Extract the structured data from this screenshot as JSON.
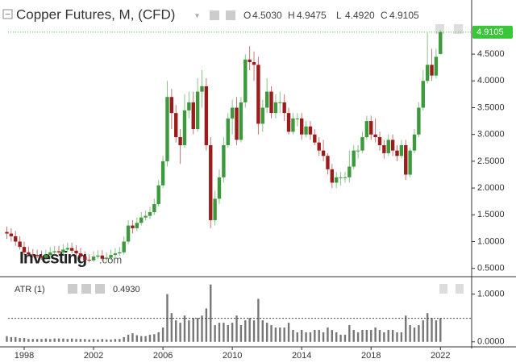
{
  "header": {
    "title": "Copper Futures, M, (CFD)",
    "ohlc": [
      {
        "key": "O",
        "text": "4.5030"
      },
      {
        "key": "H",
        "text": "4.9475"
      },
      {
        "key": "L",
        "text": "4.4920"
      },
      {
        "key": "C",
        "text": "4.9105"
      }
    ]
  },
  "chart_data": [
    {
      "type": "candlestick",
      "watermark": "Investing",
      "watermark_suffix": ".com",
      "up_color": "#3c9a3c",
      "down_color": "#9b1c1c",
      "last_price": {
        "value": 4.9105,
        "label": "4.9105"
      },
      "last_color": "#39c639",
      "xlim": [
        1997.07,
        2023.8
      ],
      "ylim": [
        0.39,
        5.36
      ],
      "yticks": [
        {
          "value": 0.5,
          "label": "0.5000"
        },
        {
          "value": 1,
          "label": "1.0000"
        },
        {
          "value": 1.5,
          "label": "1.5000"
        },
        {
          "value": 2,
          "label": "2.0000"
        },
        {
          "value": 2.5,
          "label": "2.5000"
        },
        {
          "value": 3,
          "label": "3.0000"
        },
        {
          "value": 3.5,
          "label": "3.5000"
        },
        {
          "value": 4,
          "label": "4.0000"
        },
        {
          "value": 4.5,
          "label": "4.5000"
        }
      ],
      "x": [
        1997,
        1997.25,
        1997.5,
        1997.75,
        1998,
        1998.25,
        1998.5,
        1998.75,
        1999,
        1999.25,
        1999.5,
        1999.75,
        2000,
        2000.25,
        2000.5,
        2000.75,
        2001,
        2001.25,
        2001.5,
        2001.75,
        2002,
        2002.25,
        2002.5,
        2002.75,
        2003,
        2003.25,
        2003.5,
        2003.75,
        2004,
        2004.25,
        2004.5,
        2004.75,
        2005,
        2005.25,
        2005.5,
        2005.75,
        2006,
        2006.25,
        2006.5,
        2006.75,
        2007,
        2007.25,
        2007.5,
        2007.75,
        2008,
        2008.25,
        2008.5,
        2008.75,
        2009,
        2009.25,
        2009.5,
        2009.75,
        2010,
        2010.25,
        2010.5,
        2010.75,
        2011,
        2011.25,
        2011.5,
        2011.75,
        2012,
        2012.25,
        2012.5,
        2012.75,
        2013,
        2013.25,
        2013.5,
        2013.75,
        2014,
        2014.25,
        2014.5,
        2014.75,
        2015,
        2015.25,
        2015.5,
        2015.75,
        2016,
        2016.25,
        2016.5,
        2016.75,
        2017,
        2017.25,
        2017.5,
        2017.75,
        2018,
        2018.25,
        2018.5,
        2018.75,
        2019,
        2019.25,
        2019.5,
        2019.75,
        2020,
        2020.25,
        2020.5,
        2020.75,
        2021,
        2021.25,
        2021.5,
        2021.75,
        2022
      ],
      "open": [
        1.18,
        1.15,
        1.1,
        1.0,
        0.9,
        0.8,
        0.76,
        0.75,
        0.73,
        0.7,
        0.75,
        0.8,
        0.82,
        0.8,
        0.85,
        0.88,
        0.83,
        0.78,
        0.72,
        0.66,
        0.65,
        0.72,
        0.74,
        0.68,
        0.7,
        0.75,
        0.78,
        0.8,
        1.0,
        1.3,
        1.25,
        1.35,
        1.45,
        1.48,
        1.55,
        1.7,
        2.05,
        2.5,
        3.7,
        3.4,
        2.95,
        2.8,
        3.45,
        3.6,
        3.1,
        3.8,
        3.9,
        2.8,
        1.4,
        1.8,
        2.2,
        2.8,
        3.3,
        3.5,
        2.9,
        3.6,
        4.4,
        4.35,
        4.3,
        3.2,
        3.5,
        3.8,
        3.4,
        3.6,
        3.6,
        3.4,
        3.05,
        3.3,
        3.3,
        3.0,
        3.15,
        3.0,
        2.85,
        2.7,
        2.6,
        2.35,
        2.1,
        2.2,
        2.2,
        2.2,
        2.4,
        2.7,
        2.7,
        2.95,
        3.25,
        3.0,
        2.95,
        2.8,
        2.65,
        2.9,
        2.7,
        2.6,
        2.8,
        2.25,
        2.7,
        3.0,
        3.5,
        4.0,
        4.3,
        4.1,
        4.503
      ],
      "high": [
        1.28,
        1.25,
        1.2,
        1.1,
        1.0,
        0.9,
        0.86,
        0.85,
        0.83,
        0.85,
        0.9,
        0.92,
        0.92,
        0.95,
        0.98,
        0.98,
        0.93,
        0.88,
        0.82,
        0.76,
        0.82,
        0.84,
        0.84,
        0.8,
        0.85,
        0.88,
        0.9,
        1.1,
        1.4,
        1.4,
        1.45,
        1.55,
        1.58,
        1.65,
        1.8,
        2.15,
        2.6,
        4.0,
        3.85,
        3.55,
        3.1,
        3.75,
        3.8,
        3.8,
        4.05,
        4.2,
        4.05,
        2.95,
        1.95,
        2.35,
        2.95,
        3.4,
        3.65,
        3.7,
        3.7,
        4.5,
        4.65,
        4.55,
        4.45,
        3.65,
        4.05,
        3.9,
        3.75,
        3.8,
        3.75,
        3.5,
        3.4,
        3.4,
        3.4,
        3.25,
        3.25,
        3.1,
        2.95,
        2.9,
        2.65,
        2.45,
        2.3,
        2.3,
        2.3,
        2.7,
        2.8,
        2.8,
        3.05,
        3.35,
        3.35,
        3.3,
        3.05,
        2.9,
        3.0,
        3.0,
        2.8,
        2.9,
        2.9,
        2.75,
        3.1,
        3.6,
        4.2,
        4.9,
        4.6,
        4.6,
        4.9475
      ],
      "low": [
        1.05,
        1.0,
        0.92,
        0.85,
        0.75,
        0.72,
        0.7,
        0.69,
        0.66,
        0.66,
        0.72,
        0.75,
        0.75,
        0.76,
        0.8,
        0.78,
        0.73,
        0.68,
        0.62,
        0.61,
        0.62,
        0.68,
        0.64,
        0.64,
        0.66,
        0.7,
        0.74,
        0.76,
        0.95,
        1.15,
        1.2,
        1.3,
        1.4,
        1.42,
        1.5,
        1.65,
        2.0,
        2.4,
        3.1,
        2.85,
        2.45,
        2.75,
        3.3,
        3.0,
        3.05,
        3.5,
        2.7,
        1.25,
        1.3,
        1.7,
        2.1,
        2.75,
        3.0,
        2.8,
        2.85,
        3.5,
        4.2,
        4.0,
        3.0,
        3.05,
        3.4,
        3.3,
        3.3,
        3.4,
        3.25,
        3.0,
        3.0,
        3.15,
        2.9,
        2.95,
        2.9,
        2.8,
        2.6,
        2.5,
        2.25,
        2.0,
        2.0,
        2.05,
        2.1,
        2.1,
        2.35,
        2.55,
        2.65,
        2.9,
        2.9,
        2.85,
        2.7,
        2.55,
        2.6,
        2.6,
        2.5,
        2.55,
        2.15,
        2.2,
        2.65,
        2.95,
        3.45,
        3.95,
        4.0,
        4.05,
        4.492
      ],
      "close": [
        1.15,
        1.1,
        1.0,
        0.9,
        0.8,
        0.76,
        0.75,
        0.73,
        0.7,
        0.75,
        0.8,
        0.82,
        0.8,
        0.85,
        0.88,
        0.83,
        0.78,
        0.72,
        0.66,
        0.65,
        0.72,
        0.74,
        0.68,
        0.7,
        0.75,
        0.78,
        0.8,
        1.0,
        1.3,
        1.25,
        1.35,
        1.45,
        1.48,
        1.55,
        1.7,
        2.05,
        2.5,
        3.7,
        3.4,
        2.95,
        2.8,
        3.45,
        3.6,
        3.1,
        3.8,
        3.9,
        2.8,
        1.4,
        1.8,
        2.2,
        2.8,
        3.3,
        3.5,
        2.9,
        3.6,
        4.4,
        4.35,
        4.3,
        3.2,
        3.5,
        3.8,
        3.4,
        3.6,
        3.6,
        3.4,
        3.05,
        3.3,
        3.3,
        3.0,
        3.15,
        3.0,
        2.85,
        2.7,
        2.6,
        2.35,
        2.1,
        2.2,
        2.2,
        2.2,
        2.4,
        2.7,
        2.7,
        2.95,
        3.25,
        3.0,
        2.95,
        2.8,
        2.65,
        2.9,
        2.7,
        2.6,
        2.8,
        2.25,
        2.7,
        3.0,
        3.5,
        4.0,
        4.3,
        4.1,
        4.45,
        4.9105
      ]
    },
    {
      "type": "bar",
      "name": "ATR (1)",
      "value_label": "0.4930",
      "color": "#777",
      "xlim": [
        1997.07,
        2023.8
      ],
      "xticks": [
        1998,
        2002,
        2006,
        2010,
        2014,
        2018,
        2022
      ],
      "ylim": [
        -0.105,
        1.33
      ],
      "yticks": [
        {
          "value": 0,
          "label": "0.0000"
        },
        {
          "value": 1,
          "label": "1.0000"
        }
      ],
      "values": [
        0.12,
        0.1,
        0.1,
        0.08,
        0.08,
        0.06,
        0.06,
        0.06,
        0.06,
        0.07,
        0.06,
        0.07,
        0.07,
        0.07,
        0.06,
        0.07,
        0.06,
        0.06,
        0.06,
        0.05,
        0.06,
        0.05,
        0.06,
        0.05,
        0.05,
        0.06,
        0.06,
        0.1,
        0.15,
        0.18,
        0.14,
        0.12,
        0.12,
        0.15,
        0.16,
        0.2,
        0.3,
        1.0,
        0.6,
        0.45,
        0.4,
        0.55,
        0.45,
        0.5,
        0.5,
        0.55,
        0.7,
        1.2,
        0.35,
        0.4,
        0.4,
        0.35,
        0.4,
        0.55,
        0.35,
        0.45,
        0.5,
        0.45,
        0.9,
        0.45,
        0.4,
        0.35,
        0.3,
        0.3,
        0.3,
        0.4,
        0.25,
        0.2,
        0.25,
        0.2,
        0.2,
        0.25,
        0.25,
        0.2,
        0.3,
        0.25,
        0.2,
        0.15,
        0.15,
        0.35,
        0.25,
        0.2,
        0.25,
        0.25,
        0.25,
        0.3,
        0.25,
        0.2,
        0.25,
        0.25,
        0.2,
        0.2,
        0.55,
        0.35,
        0.3,
        0.35,
        0.45,
        0.6,
        0.5,
        0.45,
        0.493
      ]
    }
  ]
}
